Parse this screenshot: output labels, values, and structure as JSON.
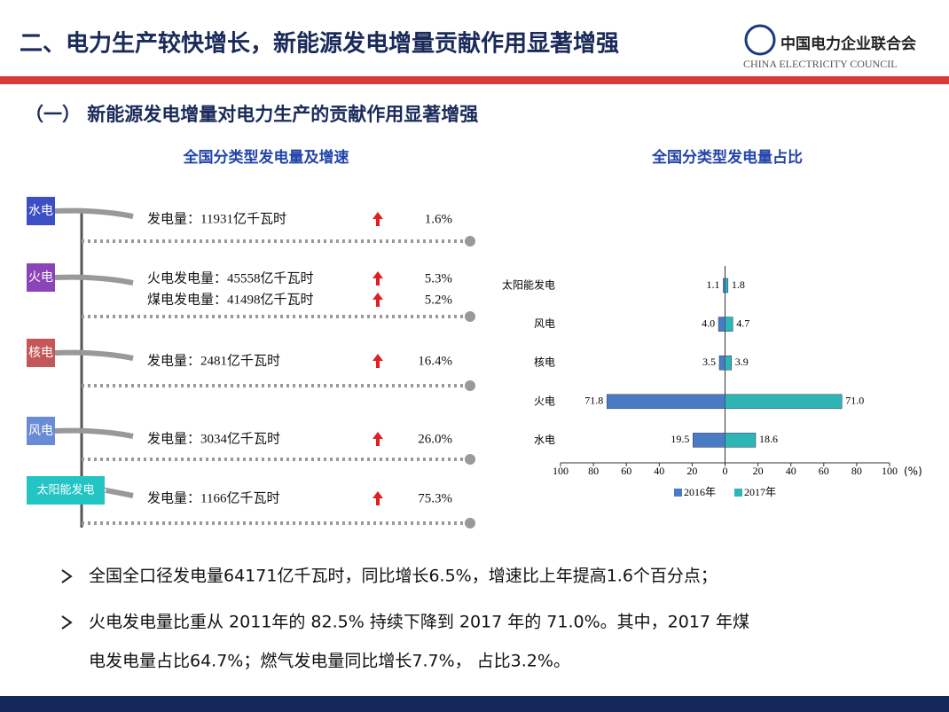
{
  "header": {
    "title": "二、电力生产较快增长，新能源发电增量贡献作用显著增强",
    "org_cn": "中国电力企业联合会",
    "org_en": "CHINA ELECTRICITY COUNCIL"
  },
  "section_title": "（一） 新能源发电增量对电力生产的贡献作用显著增强",
  "infographic": {
    "title": "全国分类型发电量及增速",
    "items": [
      {
        "tag": "水电",
        "color": "#3d4fc4",
        "rows": [
          {
            "text": "发电量：11931亿千瓦时",
            "growth": "1.6%"
          }
        ]
      },
      {
        "tag": "火电",
        "color": "#8a44b8",
        "rows": [
          {
            "text": "火电发电量：45558亿千瓦时",
            "growth": "5.3%"
          },
          {
            "text": "煤电发电量：41498亿千瓦时",
            "growth": "5.2%"
          }
        ]
      },
      {
        "tag": "核电",
        "color": "#c45858",
        "rows": [
          {
            "text": "发电量：2481亿千瓦时",
            "growth": "16.4%"
          }
        ]
      },
      {
        "tag": "风电",
        "color": "#6a8bd6",
        "rows": [
          {
            "text": "发电量：3034亿千瓦时",
            "growth": "26.0%"
          }
        ]
      },
      {
        "tag": "太阳能发电",
        "color": "#22c4c4",
        "rows": [
          {
            "text": "发电量：1166亿千瓦时",
            "growth": "75.3%"
          }
        ]
      }
    ]
  },
  "chart_data": {
    "type": "butterfly",
    "title": "全国分类型发电量占比",
    "categories": [
      "太阳能发电",
      "风电",
      "核电",
      "火电",
      "水电"
    ],
    "series": [
      {
        "name": "2016年",
        "color": "#4a7cc4",
        "values": [
          1.1,
          4.0,
          3.5,
          71.8,
          19.5
        ],
        "value_labels": [
          "1.1",
          "4.0",
          "3.5",
          "71.8",
          "19.5"
        ]
      },
      {
        "name": "2017年",
        "color": "#2fb5b5",
        "values": [
          1.8,
          4.7,
          3.9,
          71.0,
          18.6
        ],
        "value_labels": [
          "1.8",
          "4.7",
          "3.9",
          "71.0",
          "18.6"
        ]
      }
    ],
    "xlim": [
      -100,
      100
    ],
    "xticks": [
      {
        "value": -100,
        "label": "100"
      },
      {
        "value": -80,
        "label": "80"
      },
      {
        "value": -60,
        "label": "60"
      },
      {
        "value": -40,
        "label": "40"
      },
      {
        "value": -20,
        "label": "20"
      },
      0,
      20,
      40,
      60,
      80,
      100
    ],
    "x_label": "(%)"
  },
  "bullets": [
    [
      "全国全口径发电量64171亿千瓦时，同比增长6.5%，增速比上年提高1.6个百分点；"
    ],
    [
      "火电发电量比重从 2011年的 82.5% 持续下降到 2017 年的 71.0%。其中，2017 年煤",
      "电发电量占比64.7%；燃气发电量同比增长7.7%，  占比3.2%。"
    ]
  ]
}
